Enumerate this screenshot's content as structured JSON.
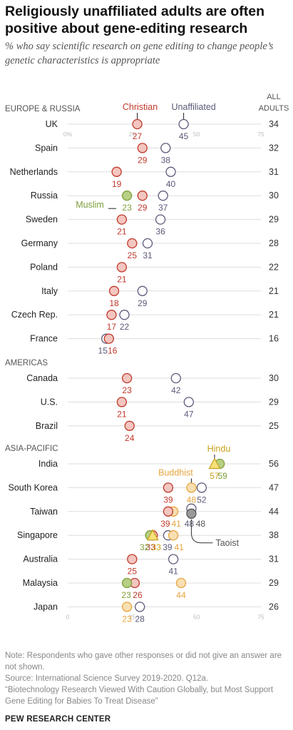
{
  "title": "Religiously unaffiliated adults are often positive about gene-editing research",
  "subtitle": "% who say scientific research on gene editing to change people’s genetic characteristics is appropriate",
  "all_adults_header": "ALL ADULTS",
  "colors": {
    "christian": "#c0392b",
    "christian_fill": "#f3c6c0",
    "unaffiliated": "#5a5a7a",
    "unaffiliated_fill": "#ffffff",
    "muslim": "#7fa03b",
    "muslim_fill": "#b7cf84",
    "buddhist": "#e6a53c",
    "buddhist_fill": "#f8dfb3",
    "hindu": "#c9a11a",
    "hindu_fill": "#f5e07a",
    "taoist": "#555555",
    "taoist_fill": "#999999",
    "axis": "#dddddd"
  },
  "chart_data": {
    "type": "dot",
    "xlim": [
      0,
      75
    ],
    "axis_ticks": [
      {
        "row": "UK",
        "labels": [
          "0%",
          "25",
          "50",
          "75"
        ]
      },
      {
        "row": "Japan",
        "labels": [
          "0",
          "25",
          "50",
          "75"
        ]
      }
    ],
    "series_labels": [
      {
        "series": "christian",
        "text": "Christian",
        "row": "UK"
      },
      {
        "series": "unaffiliated",
        "text": "Unaffiliated",
        "row": "UK"
      },
      {
        "series": "muslim",
        "text": "Muslim",
        "row": "Russia"
      },
      {
        "series": "hindu",
        "text": "Hindu",
        "row": "India"
      },
      {
        "series": "buddhist",
        "text": "Buddhist",
        "row": "South Korea"
      },
      {
        "series": "taoist",
        "text": "Taoist",
        "row": "Taiwan"
      }
    ],
    "regions": [
      {
        "name": "EUROPE & RUSSIA",
        "rows": [
          {
            "country": "UK",
            "all": 34,
            "values": {
              "christian": 27,
              "unaffiliated": 45
            }
          },
          {
            "country": "Spain",
            "all": 32,
            "values": {
              "christian": 29,
              "unaffiliated": 38
            }
          },
          {
            "country": "Netherlands",
            "all": 31,
            "values": {
              "christian": 19,
              "unaffiliated": 40
            }
          },
          {
            "country": "Russia",
            "all": 30,
            "values": {
              "muslim": 23,
              "christian": 29,
              "unaffiliated": 37
            }
          },
          {
            "country": "Sweden",
            "all": 29,
            "values": {
              "christian": 21,
              "unaffiliated": 36
            }
          },
          {
            "country": "Germany",
            "all": 28,
            "values": {
              "christian": 25,
              "unaffiliated": 31
            }
          },
          {
            "country": "Poland",
            "all": 22,
            "values": {
              "christian": 21
            }
          },
          {
            "country": "Italy",
            "all": 21,
            "values": {
              "christian": 18,
              "unaffiliated": 29
            }
          },
          {
            "country": "Czech Rep.",
            "all": 21,
            "values": {
              "christian": 17,
              "unaffiliated": 22
            }
          },
          {
            "country": "France",
            "all": 16,
            "values": {
              "unaffiliated": 15,
              "christian": 16
            }
          }
        ]
      },
      {
        "name": "AMERICAS",
        "rows": [
          {
            "country": "Canada",
            "all": 30,
            "values": {
              "christian": 23,
              "unaffiliated": 42
            }
          },
          {
            "country": "U.S.",
            "all": 29,
            "values": {
              "christian": 21,
              "unaffiliated": 47
            }
          },
          {
            "country": "Brazil",
            "all": 25,
            "values": {
              "christian": 24
            }
          }
        ]
      },
      {
        "name": "ASIA-PACIFIC",
        "rows": [
          {
            "country": "India",
            "all": 56,
            "values": {
              "hindu": 57,
              "muslim": 59
            }
          },
          {
            "country": "South Korea",
            "all": 47,
            "values": {
              "christian": 39,
              "buddhist": 48,
              "unaffiliated": 52
            }
          },
          {
            "country": "Taiwan",
            "all": 44,
            "values": {
              "christian": 39,
              "buddhist": 41,
              "unaffiliated": 48,
              "taoist": 48
            }
          },
          {
            "country": "Singapore",
            "all": 38,
            "values": {
              "muslim": 32,
              "christian": 33,
              "hindu": 33,
              "unaffiliated": 39,
              "buddhist": 41
            }
          },
          {
            "country": "Australia",
            "all": 31,
            "values": {
              "christian": 25,
              "unaffiliated": 41
            }
          },
          {
            "country": "Malaysia",
            "all": 29,
            "values": {
              "muslim": 23,
              "christian": 26,
              "buddhist": 44
            }
          },
          {
            "country": "Japan",
            "all": 26,
            "values": {
              "buddhist": 23,
              "unaffiliated": 28
            }
          }
        ]
      }
    ]
  },
  "note": {
    "line1": "Note: Respondents who gave other responses or did not give an answer are not shown.",
    "line2": "Source: International Science Survey 2019-2020. Q12a.",
    "line3": "“Biotechnology Research Viewed With Caution Globally, but Most Support Gene Editing for Babies To Treat Disease”"
  },
  "footer": "PEW RESEARCH CENTER"
}
